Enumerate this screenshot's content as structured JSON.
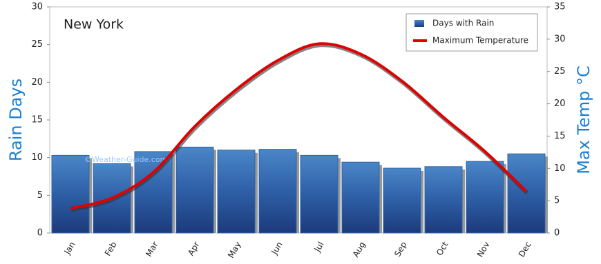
{
  "chart_data": {
    "type": "bar-line",
    "title": "New York",
    "watermark": "©Weather-Guide.com",
    "y_label": "Rain Days",
    "y2_label": "Max Temp °C",
    "categories": [
      "Jan",
      "Feb",
      "Mar",
      "Apr",
      "May",
      "Jun",
      "Jul",
      "Aug",
      "Sep",
      "Oct",
      "Nov",
      "Dec"
    ],
    "series": [
      {
        "name": "Days with Rain",
        "type": "bar",
        "color": "#2f63a8",
        "values": [
          10.3,
          9.2,
          10.8,
          11.4,
          11.0,
          11.1,
          10.3,
          9.4,
          8.6,
          8.8,
          9.5,
          10.5
        ]
      },
      {
        "name": "Maximum Temperature",
        "type": "line",
        "axis": "y2",
        "color": "#e00000",
        "values": [
          3.8,
          5.4,
          9.4,
          16.5,
          22.2,
          26.7,
          29.3,
          27.7,
          23.5,
          17.9,
          12.6,
          6.4
        ]
      }
    ],
    "ylim": [
      0,
      30
    ],
    "yticks": [
      0,
      5,
      10,
      15,
      20,
      25,
      30
    ],
    "y2lim": [
      0,
      35
    ],
    "y2ticks": [
      0,
      5,
      10,
      15,
      20,
      25,
      30,
      35
    ],
    "legend": "top-right"
  }
}
